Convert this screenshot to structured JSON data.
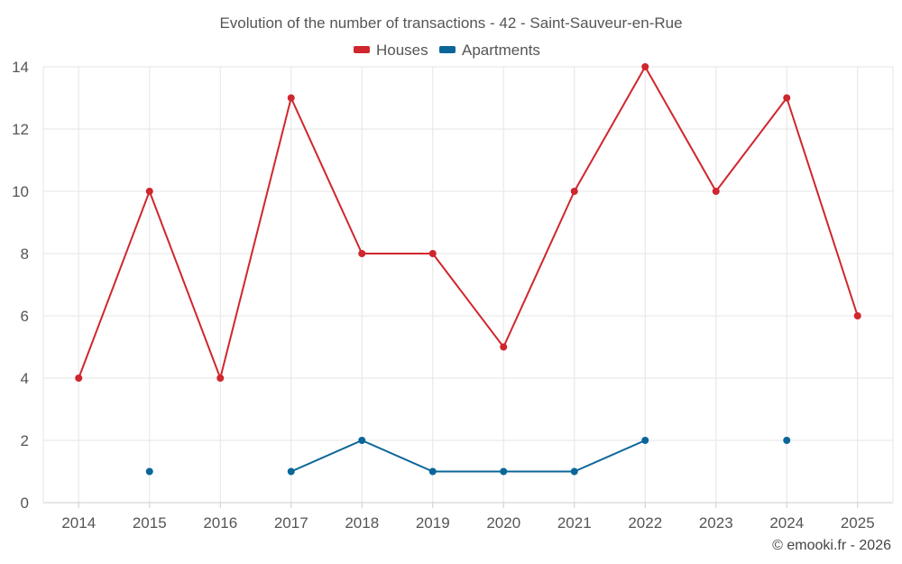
{
  "chart_data": {
    "type": "line",
    "title": "Evolution of the number of transactions - 42 - Saint-Sauveur-en-Rue",
    "xlabel": "",
    "ylabel": "",
    "categories": [
      "2014",
      "2015",
      "2016",
      "2017",
      "2018",
      "2019",
      "2020",
      "2021",
      "2022",
      "2023",
      "2024",
      "2025"
    ],
    "ylim": [
      0,
      14
    ],
    "yticks": [
      0,
      2,
      4,
      6,
      8,
      10,
      12,
      14
    ],
    "grid": true,
    "legend_position": "top-center",
    "series": [
      {
        "name": "Houses",
        "color": "#d0262d",
        "values": [
          4,
          10,
          4,
          13,
          8,
          8,
          5,
          10,
          14,
          10,
          13,
          6
        ]
      },
      {
        "name": "Apartments",
        "color": "#0b6699",
        "values": [
          null,
          1,
          null,
          1,
          2,
          1,
          1,
          1,
          2,
          null,
          2,
          null
        ]
      }
    ]
  },
  "credit": "© emooki.fr - 2026"
}
